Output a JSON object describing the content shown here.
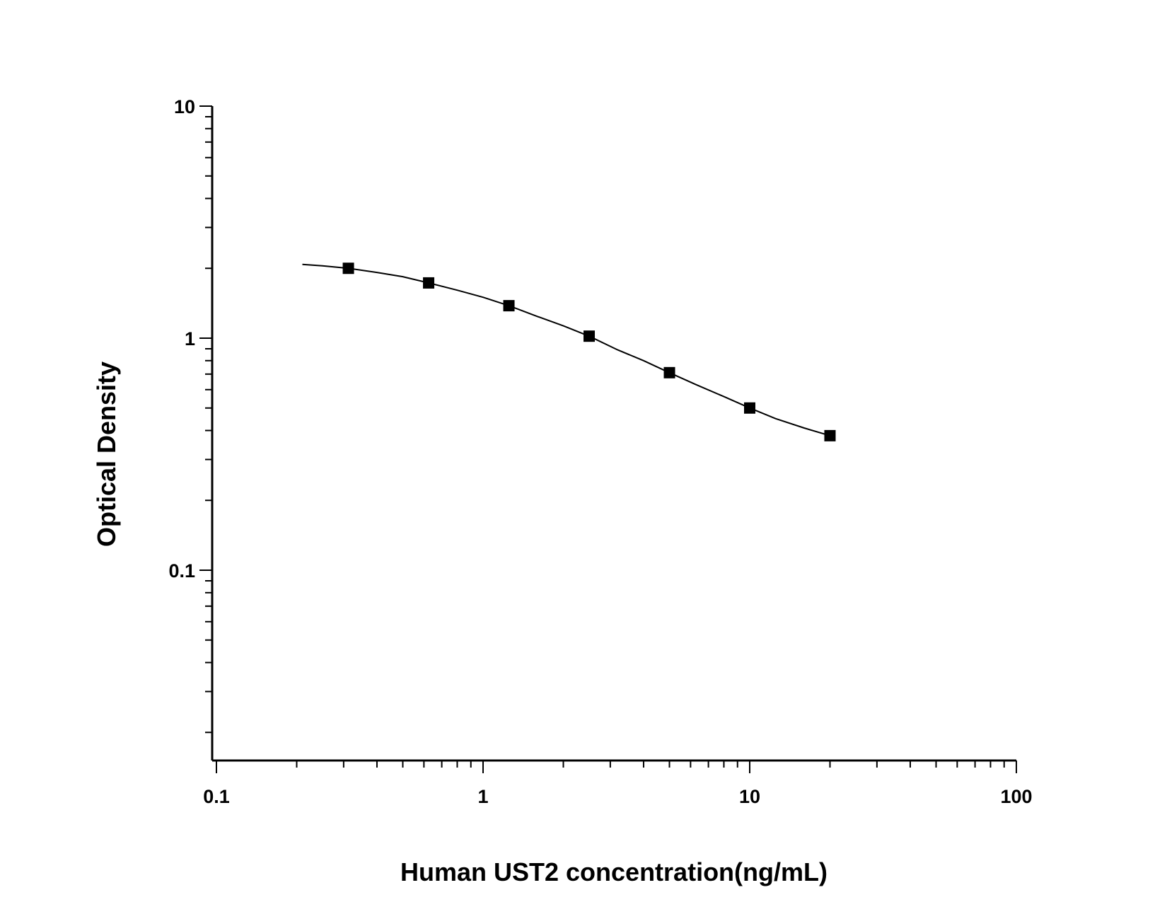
{
  "chart_data": {
    "type": "scatter",
    "xlabel": "Human UST2 concentration(ng/mL)",
    "ylabel": "Optical Density",
    "x_scale": "log",
    "y_scale": "log",
    "xlim": [
      0.1,
      100
    ],
    "ylim": [
      0.02,
      10
    ],
    "x_tick_labels": [
      "0.1",
      "1",
      "10",
      "100"
    ],
    "y_tick_labels": [
      "0.1",
      "1",
      "10"
    ],
    "grid": false,
    "legend": "none",
    "colors": {
      "marker": "#000000",
      "curve": "#000000",
      "axis": "#000000"
    },
    "series": [
      {
        "x": [
          0.3125,
          0.625,
          1.25,
          2.5,
          5,
          10,
          20
        ],
        "y": [
          2.0,
          1.73,
          1.38,
          1.02,
          0.71,
          0.5,
          0.38
        ]
      }
    ],
    "fit_curve": {
      "x": [
        0.21,
        0.25,
        0.3125,
        0.4,
        0.5,
        0.625,
        0.8,
        1.0,
        1.25,
        1.6,
        2.0,
        2.5,
        3.2,
        4.0,
        5.0,
        6.3,
        8.0,
        10,
        12.5,
        16,
        20
      ],
      "y": [
        2.08,
        2.05,
        2.0,
        1.92,
        1.84,
        1.73,
        1.61,
        1.5,
        1.38,
        1.24,
        1.13,
        1.02,
        0.89,
        0.8,
        0.71,
        0.63,
        0.56,
        0.5,
        0.45,
        0.41,
        0.38
      ]
    }
  }
}
